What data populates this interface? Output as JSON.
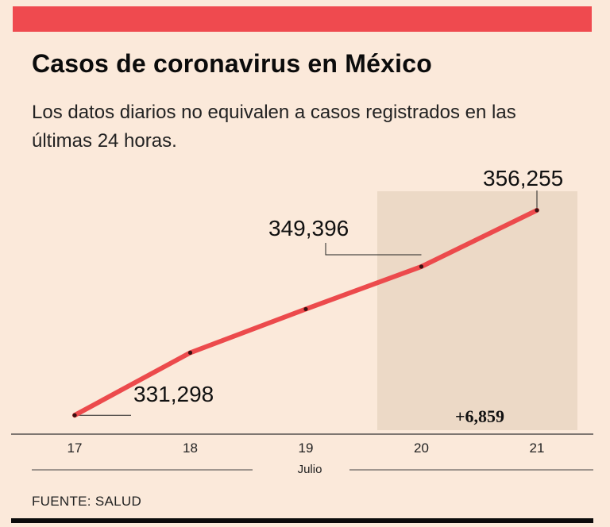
{
  "header": {
    "title": "Casos de coronavirus en México",
    "subtitle": "Los datos diarios no equivalen a casos registrados en las últimas 24 horas."
  },
  "footer": {
    "source": "FUENTE: SALUD"
  },
  "colors": {
    "background": "#fbe9da",
    "accent": "#ef4a4f",
    "highlight": "#ecd9c6",
    "text": "#111111"
  },
  "chart_data": {
    "type": "line",
    "title": "Casos de coronavirus en México",
    "xlabel": "Julio",
    "ylabel": "",
    "categories": [
      "17",
      "18",
      "19",
      "20",
      "21"
    ],
    "series": [
      {
        "name": "Casos",
        "values": [
          331298,
          338913,
          344224,
          349396,
          356255
        ]
      }
    ],
    "ylim": [
      329000,
      357500
    ],
    "labeled_points": [
      {
        "category": "17",
        "label": "331,298"
      },
      {
        "category": "20",
        "label": "349,396"
      },
      {
        "category": "21",
        "label": "356,255"
      }
    ],
    "highlight_range": [
      "20",
      "21"
    ],
    "highlight_annotation": "+6,859",
    "grid": false,
    "legend": "none"
  }
}
